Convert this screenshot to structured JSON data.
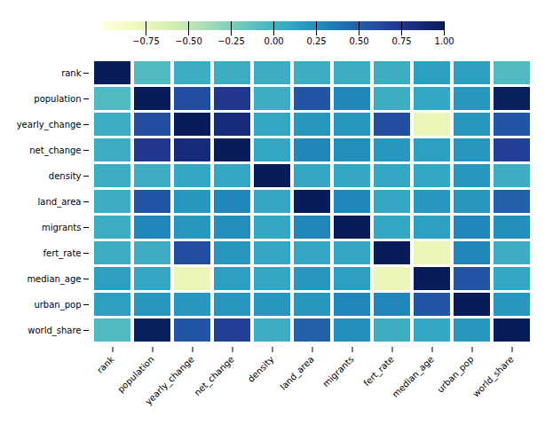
{
  "chart_data": {
    "type": "heatmap",
    "categories": [
      "rank",
      "population",
      "yearly_change",
      "net_change",
      "density",
      "land_area",
      "migrants",
      "fert_rate",
      "median_age",
      "urban_pop",
      "world_share"
    ],
    "cells": [
      [
        1.0,
        -0.05,
        0.05,
        0.05,
        0.05,
        0.05,
        0.05,
        0.05,
        0.15,
        0.15,
        -0.05
      ],
      [
        -0.05,
        1.0,
        0.6,
        0.75,
        0.05,
        0.55,
        0.3,
        0.05,
        0.1,
        0.2,
        0.97
      ],
      [
        0.05,
        0.6,
        1.0,
        0.85,
        0.1,
        0.2,
        0.2,
        0.6,
        -0.75,
        0.2,
        0.55
      ],
      [
        0.05,
        0.75,
        0.85,
        1.0,
        0.1,
        0.3,
        0.25,
        0.2,
        0.15,
        0.2,
        0.7
      ],
      [
        0.05,
        0.05,
        0.1,
        0.1,
        1.0,
        0.1,
        0.1,
        0.1,
        0.1,
        0.2,
        0.05
      ],
      [
        0.05,
        0.55,
        0.2,
        0.3,
        0.1,
        1.0,
        0.3,
        0.1,
        0.2,
        0.2,
        0.5
      ],
      [
        0.05,
        0.3,
        0.2,
        0.25,
        0.1,
        0.3,
        1.0,
        0.1,
        0.15,
        0.3,
        0.25
      ],
      [
        0.05,
        0.05,
        0.6,
        0.2,
        0.1,
        0.1,
        0.1,
        1.0,
        -0.75,
        0.3,
        0.05
      ],
      [
        0.15,
        0.1,
        -0.75,
        0.15,
        0.1,
        0.2,
        0.15,
        -0.75,
        1.0,
        0.55,
        0.1
      ],
      [
        0.15,
        0.2,
        0.2,
        0.2,
        0.2,
        0.2,
        0.3,
        0.3,
        0.55,
        1.0,
        0.2
      ],
      [
        -0.05,
        0.97,
        0.55,
        0.7,
        0.05,
        0.5,
        0.25,
        0.05,
        0.1,
        0.2,
        1.0
      ]
    ],
    "color": "YlGnBu",
    "color_range": [
      -1.0,
      1.0
    ],
    "color_ticks": [
      {
        "value": -0.75,
        "label": "−0.75"
      },
      {
        "value": -0.5,
        "label": "−0.50"
      },
      {
        "value": -0.25,
        "label": "−0.25"
      },
      {
        "value": 0.0,
        "label": "0.00"
      },
      0.25,
      {
        "value": 0.5,
        "label": "0.50"
      },
      0.75,
      {
        "value": 1.0,
        "label": "1.00"
      }
    ]
  }
}
